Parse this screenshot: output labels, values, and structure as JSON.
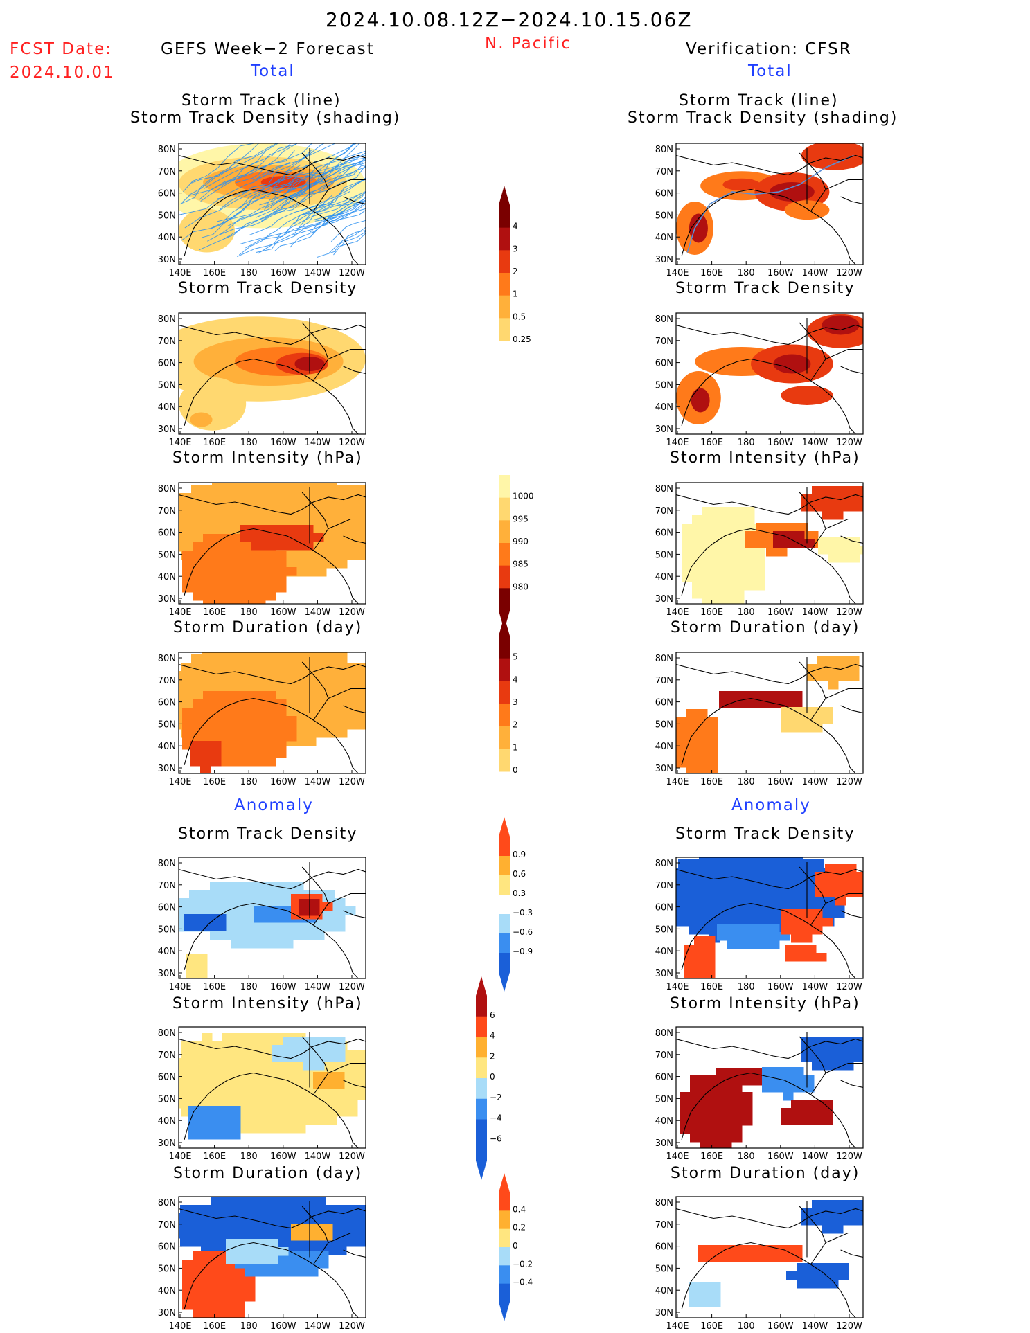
{
  "header": {
    "date_range": "2024.10.08.12Z−2024.10.15.06Z",
    "region": "N. Pacific",
    "fcst_label": "FCST Date:",
    "fcst_date": "2024.10.01",
    "left_title": "GEFS Week−2 Forecast",
    "right_title": "Verification: CFSR",
    "left_total": "Total",
    "right_total": "Total",
    "left_anomaly": "Anomaly",
    "right_anomaly": "Anomaly"
  },
  "colors": {
    "title_red": "#ff2020",
    "label_blue": "#1f3fff",
    "track_line": "#2a8ff0",
    "land": "#ffffff",
    "total_scale": [
      "#fff6a8",
      "#ffd870",
      "#ffb03a",
      "#ff7a1a",
      "#e83a10",
      "#b01010",
      "#7a0000"
    ],
    "anom_scale": [
      "#1a5fd8",
      "#3a8ef0",
      "#a8dcf8",
      "#ffffff",
      "#ffe680",
      "#ffb030",
      "#ff4a1a",
      "#b01010"
    ]
  },
  "panels": {
    "row1_title_a": "Storm Track (line)",
    "row1_title_b": "Storm Track Density (shading)",
    "row2_title": "Storm Track Density",
    "row3_title": "Storm Intensity (hPa)",
    "row4_title": "Storm Duration (day)",
    "row5_title": "Storm Track Density",
    "row6_title": "Storm Intensity (hPa)",
    "row7_title": "Storm Duration (day)"
  },
  "chart_data": [
    {
      "type": "heatmap",
      "name": "total-track-density",
      "x_ticks": [
        "140E",
        "160E",
        "180",
        "160W",
        "140W",
        "120W"
      ],
      "y_ticks": [
        "80N",
        "70N",
        "60N",
        "50N",
        "40N",
        "30N"
      ],
      "colorbar": {
        "levels": [
          "0.25",
          "0.5",
          "1",
          "2",
          "3",
          "4"
        ]
      }
    },
    {
      "type": "heatmap",
      "name": "total-storm-intensity",
      "colorbar": {
        "levels": [
          "1000",
          "995",
          "990",
          "985",
          "980"
        ]
      }
    },
    {
      "type": "heatmap",
      "name": "total-storm-duration",
      "colorbar": {
        "levels": [
          "5",
          "4",
          "3",
          "2",
          "1",
          "0"
        ]
      }
    },
    {
      "type": "heatmap",
      "name": "anomaly-track-density",
      "colorbar": {
        "levels": [
          "0.9",
          "0.6",
          "0.3",
          "−0.3",
          "−0.6",
          "−0.9"
        ]
      }
    },
    {
      "type": "heatmap",
      "name": "anomaly-storm-intensity",
      "colorbar": {
        "levels": [
          "6",
          "4",
          "2",
          "0",
          "−2",
          "−4",
          "−6"
        ]
      }
    },
    {
      "type": "heatmap",
      "name": "anomaly-storm-duration",
      "colorbar": {
        "levels": [
          "0.4",
          "0.2",
          "0",
          "−0.2",
          "−0.4"
        ]
      }
    }
  ]
}
